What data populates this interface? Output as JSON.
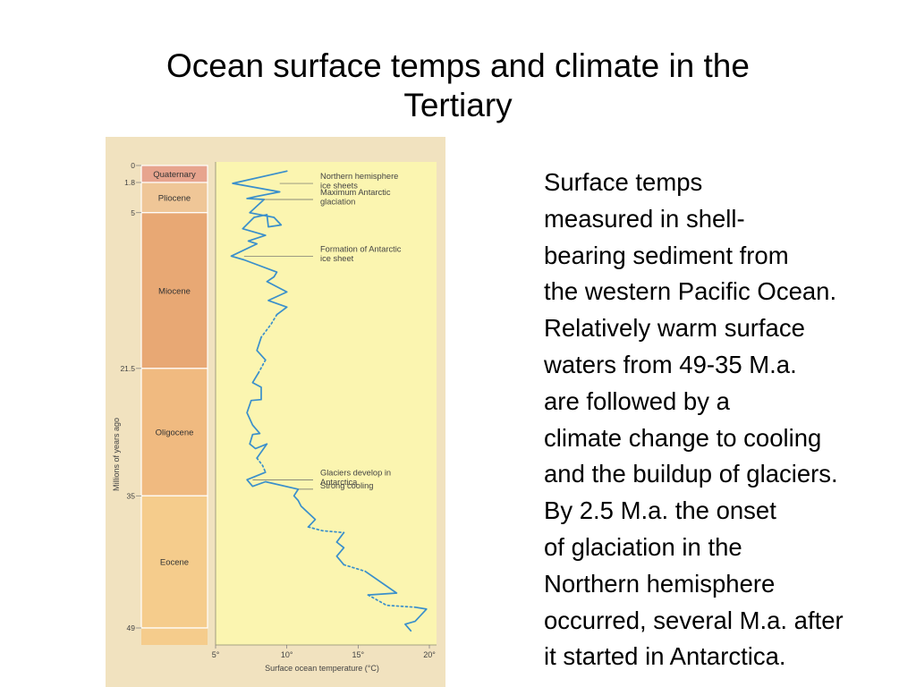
{
  "slide": {
    "title_line1": "Ocean surface temps and climate in the",
    "title_line2": "Tertiary",
    "body_lines": [
      "Surface temps",
      "measured in shell-",
      "bearing sediment from",
      "the western Pacific Ocean.",
      "Relatively warm surface",
      "waters from 49-35 M.a.",
      "are followed by a",
      "climate change to cooling",
      "and the buildup of glaciers.",
      "By 2.5 M.a. the onset",
      "of glaciation in the",
      "Northern hemisphere",
      "occurred, several M.a. after",
      "it started in Antarctica."
    ]
  },
  "colors": {
    "plot_bg": "#fbf5b0",
    "line": "#3a8fcb",
    "quaternary": "#e7a48e",
    "pliocene": "#efc697",
    "miocene": "#e8a874",
    "oligocene": "#f0ba80",
    "eocene": "#f5cc8c"
  },
  "chart_data": {
    "type": "line",
    "title": "",
    "xlabel": "Surface ocean temperature (°C)",
    "ylabel": "Millions of years ago",
    "xlim": [
      5,
      20
    ],
    "ylim": [
      0,
      49
    ],
    "x_ticks": [
      "5°",
      "10°",
      "15°",
      "20°"
    ],
    "y_tick_values": [
      0,
      1.8,
      5,
      21.5,
      35,
      49
    ],
    "y_ticks": [
      "0",
      "1.8",
      "5",
      "21.5",
      "35",
      "49"
    ],
    "periods": [
      {
        "name": "Quaternary",
        "start": 0,
        "end": 1.8,
        "color_key": "quaternary"
      },
      {
        "name": "Pliocene",
        "start": 1.8,
        "end": 5,
        "color_key": "pliocene"
      },
      {
        "name": "Miocene",
        "start": 5,
        "end": 21.5,
        "color_key": "miocene"
      },
      {
        "name": "Oligocene",
        "start": 21.5,
        "end": 35,
        "color_key": "oligocene"
      },
      {
        "name": "Eocene",
        "start": 35,
        "end": 49,
        "color_key": "eocene"
      }
    ],
    "series": [
      {
        "segments": [
          {
            "style": "solid",
            "points": [
              [
                10.0,
                0.6
              ],
              [
                6.2,
                1.9
              ],
              [
                9.5,
                2.8
              ],
              [
                7.8,
                3.3
              ],
              [
                7.2,
                3.5
              ],
              [
                8.4,
                3.6
              ],
              [
                7.4,
                5.0
              ],
              [
                9.1,
                5.5
              ],
              [
                9.6,
                6.3
              ],
              [
                8.7,
                6.5
              ],
              [
                8.6,
                5.2
              ],
              [
                7.7,
                5.5
              ],
              [
                6.9,
                6.7
              ],
              [
                8.5,
                7.4
              ],
              [
                7.3,
                8.0
              ],
              [
                7.9,
                8.3
              ],
              [
                6.1,
                9.6
              ],
              [
                7.0,
                10.0
              ],
              [
                9.3,
                11.3
              ],
              [
                9.1,
                11.8
              ],
              [
                8.6,
                12.3
              ],
              [
                10.0,
                13.4
              ],
              [
                8.7,
                14.3
              ],
              [
                10.0,
                15.0
              ],
              [
                9.3,
                15.8
              ]
            ]
          },
          {
            "style": "dashed",
            "points": [
              [
                9.3,
                15.8
              ],
              [
                8.9,
                16.8
              ],
              [
                8.2,
                18.2
              ]
            ]
          },
          {
            "style": "solid",
            "points": [
              [
                8.2,
                18.2
              ],
              [
                7.9,
                19.6
              ],
              [
                8.5,
                20.6
              ]
            ]
          },
          {
            "style": "dashed",
            "points": [
              [
                8.5,
                20.6
              ],
              [
                8.0,
                22.0
              ]
            ]
          },
          {
            "style": "solid",
            "points": [
              [
                8.0,
                22.0
              ],
              [
                7.6,
                23.0
              ],
              [
                8.2,
                23.5
              ],
              [
                8.2,
                24.8
              ],
              [
                7.5,
                24.9
              ],
              [
                7.2,
                26.2
              ],
              [
                7.6,
                27.5
              ],
              [
                8.1,
                28.4
              ],
              [
                7.6,
                28.5
              ],
              [
                7.4,
                29.5
              ],
              [
                7.8,
                30.0
              ],
              [
                8.6,
                29.5
              ],
              [
                7.9,
                31.0
              ]
            ]
          },
          {
            "style": "dashed",
            "points": [
              [
                7.9,
                31.0
              ],
              [
                8.3,
                31.8
              ],
              [
                8.5,
                32.5
              ]
            ]
          },
          {
            "style": "solid",
            "points": [
              [
                8.5,
                32.5
              ],
              [
                7.2,
                33.3
              ],
              [
                7.6,
                34.0
              ],
              [
                8.5,
                33.5
              ],
              [
                10.8,
                34.3
              ],
              [
                10.5,
                35.0
              ],
              [
                10.8,
                35.5
              ],
              [
                11.0,
                36.1
              ],
              [
                12.0,
                37.5
              ],
              [
                11.5,
                38.3
              ]
            ]
          },
          {
            "style": "dashed",
            "points": [
              [
                11.5,
                38.3
              ],
              [
                12.5,
                38.7
              ],
              [
                14.0,
                38.9
              ]
            ]
          },
          {
            "style": "solid",
            "points": [
              [
                14.0,
                38.9
              ],
              [
                13.5,
                39.9
              ],
              [
                14.0,
                40.5
              ],
              [
                13.5,
                41.4
              ],
              [
                14.0,
                42.3
              ]
            ]
          },
          {
            "style": "dashed",
            "points": [
              [
                14.0,
                42.3
              ],
              [
                15.5,
                43.0
              ]
            ]
          },
          {
            "style": "solid",
            "points": [
              [
                15.5,
                43.0
              ],
              [
                17.7,
                45.3
              ],
              [
                15.7,
                45.5
              ]
            ]
          },
          {
            "style": "dashed",
            "points": [
              [
                15.7,
                45.5
              ],
              [
                17.0,
                46.6
              ],
              [
                19.0,
                46.8
              ]
            ]
          },
          {
            "style": "solid",
            "points": [
              [
                19.0,
                46.8
              ],
              [
                19.8,
                47.0
              ],
              [
                19.0,
                48.3
              ],
              [
                18.3,
                48.6
              ],
              [
                18.7,
                49.3
              ]
            ]
          }
        ]
      }
    ],
    "annotations": [
      {
        "lines": [
          "Northern hemisphere",
          "ice sheets"
        ],
        "y": 1.9,
        "x_start": 9.5
      },
      {
        "lines": [
          "Maximum Antarctic",
          "glaciation"
        ],
        "y": 3.6,
        "x_start": 8.4
      },
      {
        "lines": [
          "Formation of Antarctic",
          "ice sheet"
        ],
        "y": 9.6,
        "x_start": 7.0
      },
      {
        "lines": [
          "Glaciers develop in",
          "Antarctica"
        ],
        "y": 33.3,
        "x_start": 7.6
      },
      {
        "lines": [
          "Strong cooling"
        ],
        "y": 34.3,
        "x_start": 10.8
      }
    ]
  }
}
